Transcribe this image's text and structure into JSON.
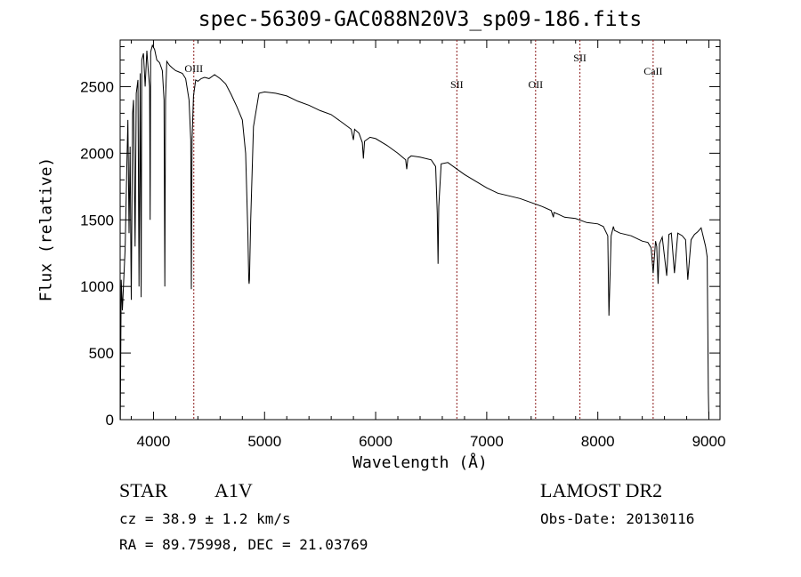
{
  "chart_data": {
    "type": "line",
    "title": "spec-56309-GAC088N20V3_sp09-186.fits",
    "xlabel": "Wavelength (Å)",
    "ylabel": "Flux (relative)",
    "xlim": [
      3700,
      9100
    ],
    "ylim": [
      0,
      2850
    ],
    "xticks": [
      4000,
      5000,
      6000,
      7000,
      8000,
      9000
    ],
    "yticks": [
      0,
      500,
      1000,
      1500,
      2000,
      2500
    ],
    "grid": false,
    "line_color": "#000000",
    "marker_color": "#8b1a1a",
    "series": [
      {
        "x": [
          3702,
          3710,
          3720,
          3730,
          3745,
          3760,
          3770,
          3780,
          3790,
          3797,
          3800,
          3812,
          3820,
          3835,
          3845,
          3860,
          3870,
          3880,
          3889,
          3895,
          3910,
          3925,
          3940,
          3955,
          3965,
          3970,
          3975,
          3990,
          4010,
          4030,
          4055,
          4080,
          4095,
          4102,
          4109,
          4120,
          4145,
          4170,
          4200,
          4230,
          4260,
          4290,
          4320,
          4335,
          4341,
          4347,
          4360,
          4380,
          4400,
          4430,
          4460,
          4500,
          4550,
          4600,
          4650,
          4700,
          4750,
          4800,
          4830,
          4850,
          4858,
          4861,
          4864,
          4875,
          4900,
          4950,
          5000,
          5100,
          5200,
          5300,
          5400,
          5500,
          5600,
          5700,
          5780,
          5800,
          5810,
          5850,
          5880,
          5890,
          5900,
          5950,
          6000,
          6100,
          6200,
          6270,
          6280,
          6290,
          6320,
          6400,
          6500,
          6540,
          6555,
          6562,
          6568,
          6590,
          6650,
          6700,
          6800,
          6900,
          7000,
          7100,
          7200,
          7300,
          7400,
          7500,
          7580,
          7600,
          7605,
          7650,
          7700,
          7800,
          7900,
          8000,
          8050,
          8090,
          8100,
          8120,
          8140,
          8150,
          8200,
          8300,
          8400,
          8450,
          8480,
          8498,
          8520,
          8530,
          8542,
          8555,
          8580,
          8620,
          8640,
          8662,
          8690,
          8720,
          8760,
          8790,
          8810,
          8840,
          8870,
          8900,
          8930,
          8950,
          8970,
          8985,
          8995,
          9000
        ],
        "y": [
          0,
          1050,
          820,
          1000,
          1280,
          1900,
          2250,
          1400,
          2050,
          1200,
          900,
          2300,
          2400,
          1300,
          2450,
          2550,
          1000,
          2600,
          920,
          2700,
          2750,
          2500,
          2770,
          2600,
          2500,
          1500,
          2760,
          2810,
          2780,
          2700,
          2680,
          2620,
          2400,
          1000,
          2400,
          2690,
          2660,
          2640,
          2620,
          2610,
          2600,
          2560,
          2400,
          2100,
          980,
          2100,
          2430,
          2550,
          2540,
          2560,
          2570,
          2560,
          2590,
          2560,
          2520,
          2440,
          2350,
          2250,
          2000,
          1400,
          1050,
          1020,
          1050,
          1500,
          2200,
          2450,
          2460,
          2450,
          2430,
          2390,
          2360,
          2320,
          2290,
          2230,
          2180,
          2100,
          2180,
          2150,
          2080,
          1960,
          2090,
          2120,
          2110,
          2060,
          2000,
          1950,
          1880,
          1960,
          1980,
          1970,
          1950,
          1900,
          1550,
          1170,
          1600,
          1920,
          1930,
          1900,
          1840,
          1790,
          1740,
          1700,
          1680,
          1660,
          1630,
          1600,
          1570,
          1520,
          1555,
          1540,
          1520,
          1510,
          1480,
          1470,
          1450,
          1380,
          780,
          1380,
          1450,
          1420,
          1400,
          1380,
          1340,
          1330,
          1290,
          1100,
          1340,
          1300,
          1020,
          1320,
          1370,
          1080,
          1390,
          1400,
          1100,
          1400,
          1380,
          1350,
          1050,
          1350,
          1390,
          1410,
          1440,
          1370,
          1300,
          1220,
          200,
          0
        ]
      }
    ],
    "lines": [
      {
        "label": "OIII",
        "x": 4363,
        "label_y": 2610
      },
      {
        "label": "SII",
        "x": 6731,
        "label_y": 2490
      },
      {
        "label": "OII",
        "x": 7440,
        "label_y": 2490
      },
      {
        "label": "SII",
        "x": 7839,
        "label_y": 2690
      },
      {
        "label": "CaII",
        "x": 8498,
        "label_y": 2590
      }
    ]
  },
  "info": {
    "star_label": "STAR",
    "subclass": "A1V",
    "cz_text": "cz = 38.9 ± 1.2 km/s",
    "coords_text": "RA =  89.75998, DEC =  21.03769",
    "survey": "LAMOST DR2",
    "obs_date": "Obs-Date: 20130116"
  }
}
